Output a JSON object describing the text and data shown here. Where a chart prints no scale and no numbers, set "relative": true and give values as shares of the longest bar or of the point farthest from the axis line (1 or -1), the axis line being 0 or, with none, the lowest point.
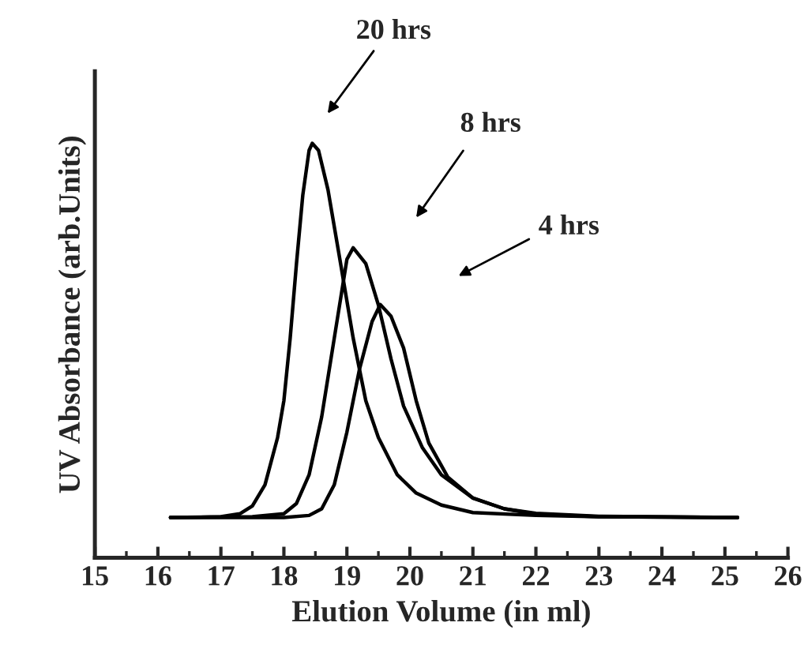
{
  "chart_data": {
    "type": "line",
    "relative": true,
    "xlabel": "Elution Volume (in ml)",
    "ylabel": "UV Absorbance (arb.Units)",
    "xlim": [
      15,
      26
    ],
    "xticks": [
      15,
      16,
      17,
      18,
      19,
      20,
      21,
      22,
      23,
      24,
      25,
      26
    ],
    "grid": false,
    "legend": false,
    "marker": "none",
    "line_style": "solid",
    "series": [
      {
        "color": "#000000",
        "x": [
          16.2,
          17.0,
          17.3,
          17.5,
          17.7,
          17.9,
          18.0,
          18.1,
          18.2,
          18.3,
          18.4,
          18.45,
          18.55,
          18.7,
          18.9,
          19.1,
          19.3,
          19.5,
          19.8,
          20.1,
          20.5,
          21.0,
          22.0,
          23.0,
          25.2
        ],
        "values": [
          0.097,
          0.099,
          0.106,
          0.125,
          0.176,
          0.29,
          0.379,
          0.53,
          0.71,
          0.875,
          0.983,
          1.0,
          0.983,
          0.888,
          0.71,
          0.53,
          0.379,
          0.29,
          0.2,
          0.156,
          0.127,
          0.109,
          0.102,
          0.099,
          0.097
        ]
      },
      {
        "color": "#000000",
        "x": [
          16.2,
          17.5,
          18.0,
          18.2,
          18.4,
          18.6,
          18.8,
          19.0,
          19.1,
          19.3,
          19.5,
          19.7,
          19.9,
          20.2,
          20.5,
          21.0,
          21.5,
          22.0,
          23.0,
          25.2
        ],
        "values": [
          0.097,
          0.099,
          0.106,
          0.131,
          0.2,
          0.34,
          0.53,
          0.72,
          0.748,
          0.71,
          0.61,
          0.48,
          0.366,
          0.265,
          0.2,
          0.144,
          0.118,
          0.105,
          0.099,
          0.097
        ]
      },
      {
        "color": "#000000",
        "x": [
          16.2,
          18.0,
          18.4,
          18.6,
          18.8,
          19.0,
          19.2,
          19.4,
          19.53,
          19.7,
          19.9,
          20.1,
          20.3,
          20.6,
          21.0,
          21.5,
          22.0,
          23.0,
          25.2
        ],
        "values": [
          0.097,
          0.097,
          0.102,
          0.118,
          0.176,
          0.303,
          0.455,
          0.57,
          0.611,
          0.583,
          0.506,
          0.379,
          0.277,
          0.195,
          0.144,
          0.118,
          0.107,
          0.1,
          0.097
        ]
      }
    ],
    "annotations": [
      "20 hrs",
      "8 hrs",
      "4 hrs"
    ]
  }
}
